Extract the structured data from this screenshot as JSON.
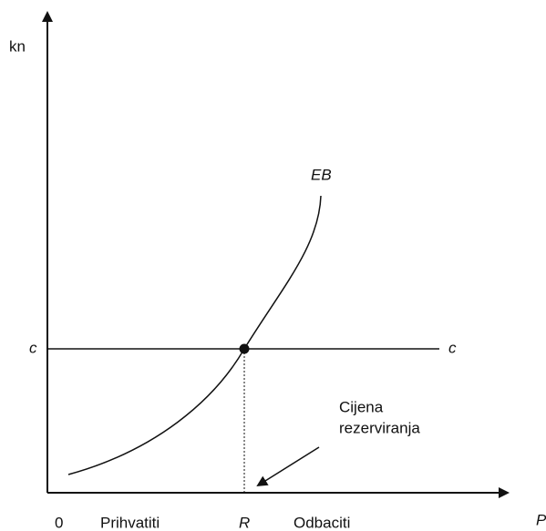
{
  "axis_labels": {
    "y": "kn",
    "x": "P"
  },
  "curve_label": "EB",
  "line_labels": [
    "c",
    "c"
  ],
  "point_label": "R",
  "origin": "0",
  "regions": [
    "Prihvatiti",
    "Odbaciti"
  ],
  "annotation": [
    "Cijena",
    "rezerviranja"
  ]
}
